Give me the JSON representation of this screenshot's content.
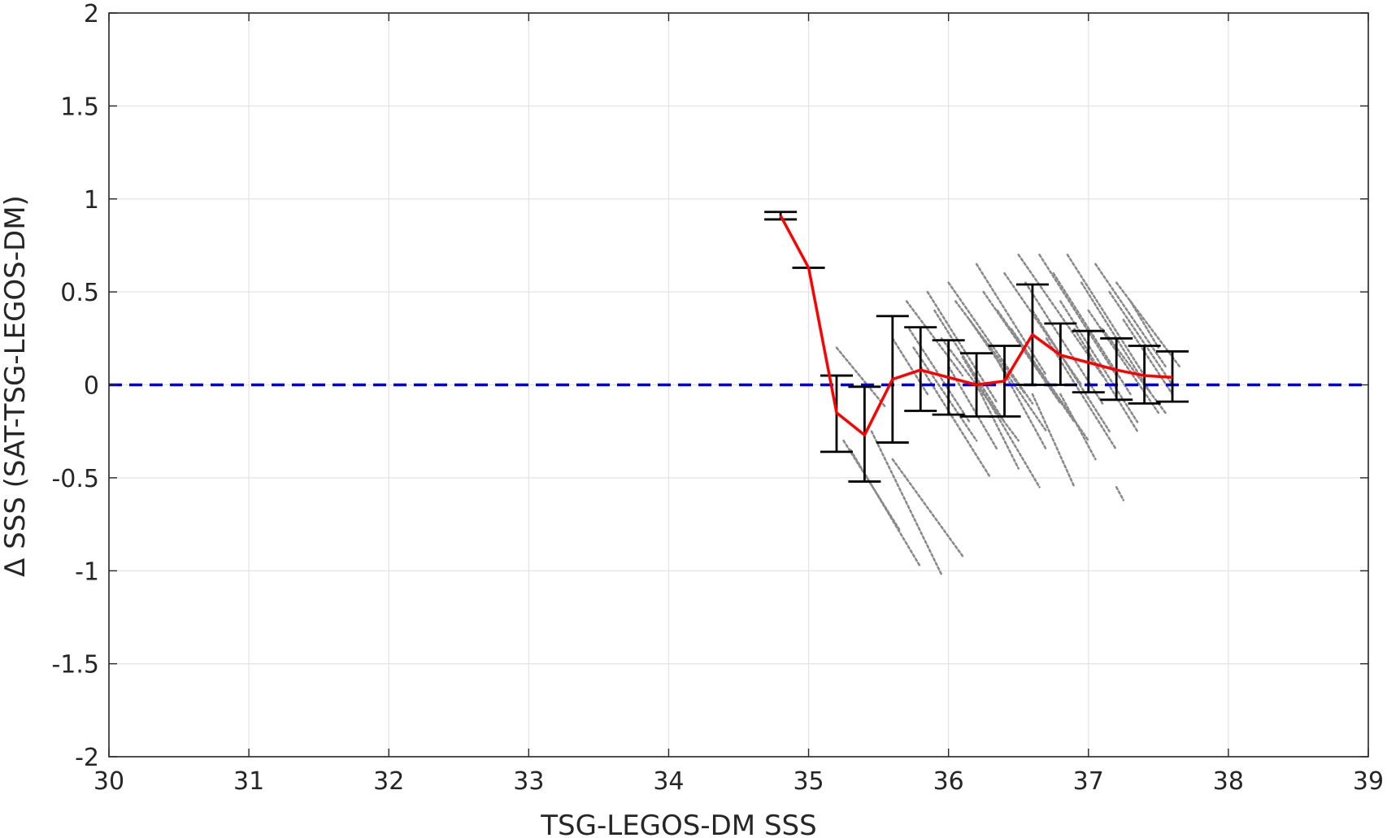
{
  "chart_data": {
    "type": "scatter",
    "xlabel": "TSG-LEGOS-DM SSS",
    "ylabel": "Δ SSS (SAT-TSG-LEGOS-DM)",
    "xlim": [
      30,
      39
    ],
    "ylim": [
      -2,
      2
    ],
    "xticks": [
      "30",
      "31",
      "32",
      "33",
      "34",
      "35",
      "36",
      "37",
      "38",
      "39"
    ],
    "yticks": [
      "-2",
      "-1.5",
      "-1",
      "-0.5",
      "0",
      "0.5",
      "1",
      "1.5",
      "2"
    ],
    "grid": true,
    "reference_line": {
      "y": 0,
      "style": "dashed",
      "color": "#0000dd"
    },
    "colors": {
      "scatter": "#8a8a8a",
      "mean_line": "#ff0000",
      "error_bars": "#000000",
      "grid": "#e3e3e3",
      "axes": "#262626"
    },
    "mean_series": {
      "x": [
        34.8,
        35.0,
        35.2,
        35.4,
        35.6,
        35.8,
        36.0,
        36.2,
        36.4,
        36.6,
        36.8,
        37.0,
        37.2,
        37.4,
        37.6
      ],
      "y": [
        0.91,
        0.63,
        -0.15,
        -0.27,
        0.03,
        0.08,
        0.04,
        0.0,
        0.02,
        0.27,
        0.16,
        0.12,
        0.08,
        0.05,
        0.04
      ],
      "lower": [
        0.89,
        0.63,
        -0.36,
        -0.52,
        -0.31,
        -0.14,
        -0.16,
        -0.17,
        -0.17,
        0.0,
        0.0,
        -0.04,
        -0.08,
        -0.1,
        -0.09
      ],
      "upper": [
        0.93,
        0.63,
        0.05,
        -0.01,
        0.37,
        0.31,
        0.24,
        0.17,
        0.21,
        0.54,
        0.33,
        0.29,
        0.25,
        0.21,
        0.18
      ]
    },
    "scatter_segments": [
      [
        35.2,
        0.2,
        35.55,
        -0.12
      ],
      [
        35.25,
        -0.3,
        35.65,
        -0.78
      ],
      [
        35.3,
        -0.35,
        35.8,
        -0.98
      ],
      [
        35.45,
        -0.25,
        35.95,
        -1.02
      ],
      [
        35.6,
        -0.4,
        36.1,
        -0.92
      ],
      [
        35.6,
        0.25,
        35.85,
        -0.05
      ],
      [
        35.7,
        0.45,
        36.1,
        0.05
      ],
      [
        35.72,
        0.3,
        36.15,
        -0.2
      ],
      [
        35.75,
        0.2,
        36.2,
        -0.3
      ],
      [
        35.8,
        0.1,
        36.3,
        -0.5
      ],
      [
        35.85,
        0.5,
        36.35,
        -0.1
      ],
      [
        35.9,
        0.4,
        36.4,
        -0.2
      ],
      [
        35.95,
        0.25,
        36.5,
        -0.3
      ],
      [
        36.0,
        0.55,
        36.6,
        -0.1
      ],
      [
        36.05,
        0.45,
        36.55,
        -0.05
      ],
      [
        36.1,
        0.15,
        36.65,
        -0.55
      ],
      [
        36.15,
        0.35,
        36.7,
        -0.25
      ],
      [
        36.2,
        0.65,
        36.7,
        0.05
      ],
      [
        36.25,
        0.5,
        36.8,
        -0.1
      ],
      [
        36.3,
        0.2,
        36.7,
        -0.35
      ],
      [
        36.35,
        0.4,
        36.9,
        -0.2
      ],
      [
        36.4,
        0.6,
        36.95,
        0.0
      ],
      [
        36.45,
        0.3,
        37.0,
        -0.3
      ],
      [
        36.5,
        0.7,
        37.1,
        0.05
      ],
      [
        36.55,
        0.55,
        37.1,
        -0.1
      ],
      [
        36.6,
        0.4,
        37.15,
        -0.25
      ],
      [
        36.65,
        0.7,
        37.2,
        0.05
      ],
      [
        36.7,
        0.25,
        37.2,
        -0.35
      ],
      [
        36.75,
        0.6,
        37.3,
        -0.05
      ],
      [
        36.8,
        0.45,
        37.35,
        -0.2
      ],
      [
        36.85,
        0.7,
        37.4,
        0.05
      ],
      [
        36.9,
        0.3,
        37.35,
        -0.25
      ],
      [
        36.95,
        0.55,
        37.45,
        -0.05
      ],
      [
        37.0,
        0.4,
        37.5,
        -0.15
      ],
      [
        37.05,
        0.65,
        37.55,
        0.1
      ],
      [
        37.1,
        0.3,
        37.55,
        -0.15
      ],
      [
        37.15,
        0.5,
        37.6,
        0.0
      ],
      [
        37.2,
        0.55,
        37.65,
        0.1
      ],
      [
        37.25,
        0.35,
        37.6,
        -0.05
      ],
      [
        37.3,
        0.45,
        37.5,
        0.2
      ],
      [
        36.0,
        0.1,
        36.35,
        -0.35
      ],
      [
        36.2,
        0.0,
        36.5,
        -0.45
      ],
      [
        36.6,
        -0.05,
        36.9,
        -0.55
      ],
      [
        36.8,
        -0.05,
        37.05,
        -0.4
      ],
      [
        37.2,
        -0.55,
        37.25,
        -0.62
      ]
    ]
  }
}
